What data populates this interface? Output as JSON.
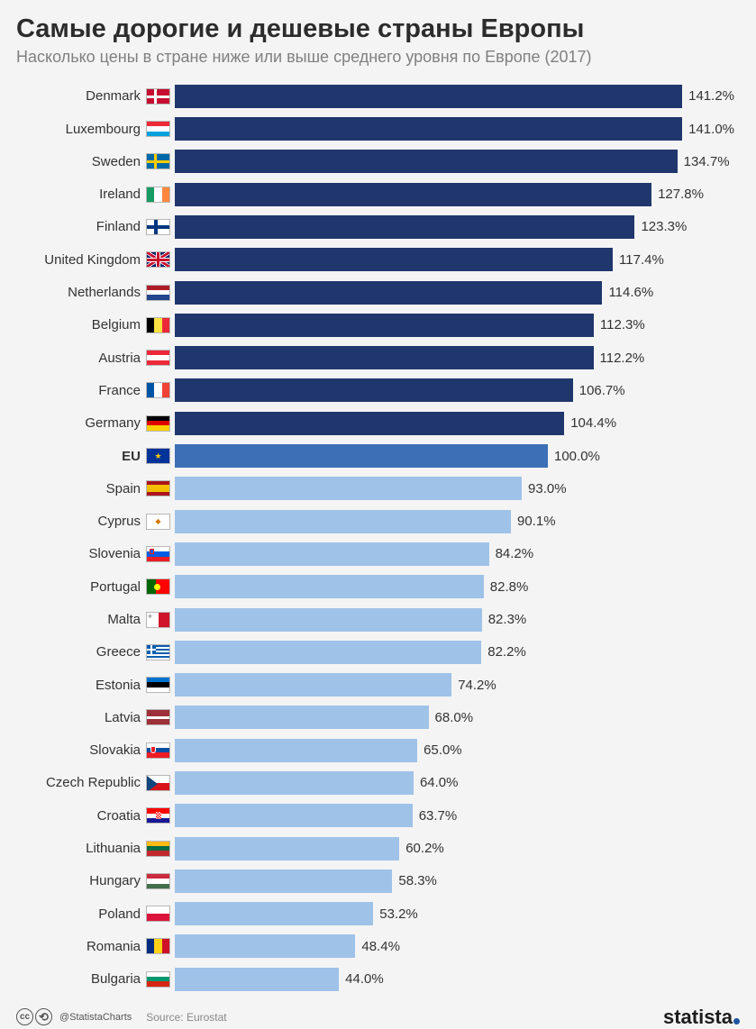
{
  "title": "Самые дорогие и дешевые страны Европы",
  "subtitle": "Насколько цены в стране ниже или выше среднего уровня по Европе (2017)",
  "chart": {
    "type": "bar",
    "max_value": 150,
    "bar_colors": {
      "above": "#20376d",
      "eu": "#3c6fb6",
      "below": "#9fc2e8"
    },
    "label_fontsize": 15,
    "value_fontsize": 15,
    "background_color": "#f4f4f4",
    "rows": [
      {
        "label": "Denmark",
        "value": 141.2,
        "tier": "above",
        "flag": {
          "type": "dan"
        }
      },
      {
        "label": "Luxembourg",
        "value": 141.0,
        "tier": "above",
        "flag": {
          "type": "h3",
          "c": [
            "#ed2939",
            "#fff",
            "#00a1de"
          ]
        }
      },
      {
        "label": "Sweden",
        "value": 134.7,
        "tier": "above",
        "flag": {
          "type": "swe"
        }
      },
      {
        "label": "Ireland",
        "value": 127.8,
        "tier": "above",
        "flag": {
          "type": "v3",
          "c": [
            "#169b62",
            "#fff",
            "#ff883e"
          ]
        }
      },
      {
        "label": "Finland",
        "value": 123.3,
        "tier": "above",
        "flag": {
          "type": "fin"
        }
      },
      {
        "label": "United Kingdom",
        "value": 117.4,
        "tier": "above",
        "flag": {
          "type": "uk"
        }
      },
      {
        "label": "Netherlands",
        "value": 114.6,
        "tier": "above",
        "flag": {
          "type": "h3",
          "c": [
            "#ae1c28",
            "#fff",
            "#21468b"
          ]
        }
      },
      {
        "label": "Belgium",
        "value": 112.3,
        "tier": "above",
        "flag": {
          "type": "v3",
          "c": [
            "#000",
            "#fae042",
            "#ed2939"
          ]
        }
      },
      {
        "label": "Austria",
        "value": 112.2,
        "tier": "above",
        "flag": {
          "type": "h3",
          "c": [
            "#ed2939",
            "#fff",
            "#ed2939"
          ]
        }
      },
      {
        "label": "France",
        "value": 106.7,
        "tier": "above",
        "flag": {
          "type": "v3",
          "c": [
            "#0055a4",
            "#fff",
            "#ef4135"
          ]
        }
      },
      {
        "label": "Germany",
        "value": 104.4,
        "tier": "above",
        "flag": {
          "type": "h3",
          "c": [
            "#000",
            "#dd0000",
            "#ffce00"
          ]
        }
      },
      {
        "label": "EU",
        "value": 100.0,
        "tier": "eu",
        "bold": true,
        "flag": {
          "type": "eu"
        }
      },
      {
        "label": "Spain",
        "value": 93.0,
        "tier": "below",
        "flag": {
          "type": "esp"
        }
      },
      {
        "label": "Cyprus",
        "value": 90.1,
        "tier": "below",
        "flag": {
          "type": "cyp"
        }
      },
      {
        "label": "Slovenia",
        "value": 84.2,
        "tier": "below",
        "flag": {
          "type": "svn"
        }
      },
      {
        "label": "Portugal",
        "value": 82.8,
        "tier": "below",
        "flag": {
          "type": "prt"
        }
      },
      {
        "label": "Malta",
        "value": 82.3,
        "tier": "below",
        "flag": {
          "type": "mlt"
        }
      },
      {
        "label": "Greece",
        "value": 82.2,
        "tier": "below",
        "flag": {
          "type": "grc"
        }
      },
      {
        "label": "Estonia",
        "value": 74.2,
        "tier": "below",
        "flag": {
          "type": "h3",
          "c": [
            "#0072ce",
            "#000",
            "#fff"
          ]
        }
      },
      {
        "label": "Latvia",
        "value": 68.0,
        "tier": "below",
        "flag": {
          "type": "lva"
        }
      },
      {
        "label": "Slovakia",
        "value": 65.0,
        "tier": "below",
        "flag": {
          "type": "svk"
        }
      },
      {
        "label": "Czech Republic",
        "value": 64.0,
        "tier": "below",
        "flag": {
          "type": "cze"
        }
      },
      {
        "label": "Croatia",
        "value": 63.7,
        "tier": "below",
        "flag": {
          "type": "hrv"
        }
      },
      {
        "label": "Lithuania",
        "value": 60.2,
        "tier": "below",
        "flag": {
          "type": "h3",
          "c": [
            "#fdb913",
            "#006a44",
            "#c1272d"
          ]
        }
      },
      {
        "label": "Hungary",
        "value": 58.3,
        "tier": "below",
        "flag": {
          "type": "h3",
          "c": [
            "#cd2a3e",
            "#fff",
            "#436f4d"
          ]
        }
      },
      {
        "label": "Poland",
        "value": 53.2,
        "tier": "below",
        "flag": {
          "type": "h2",
          "c": [
            "#fff",
            "#dc143c"
          ]
        }
      },
      {
        "label": "Romania",
        "value": 48.4,
        "tier": "below",
        "flag": {
          "type": "v3",
          "c": [
            "#002b7f",
            "#fcd116",
            "#ce1126"
          ]
        }
      },
      {
        "label": "Bulgaria",
        "value": 44.0,
        "tier": "below",
        "flag": {
          "type": "h3",
          "c": [
            "#fff",
            "#00966e",
            "#d62612"
          ]
        }
      }
    ]
  },
  "footer": {
    "attribution": "@StatistaCharts",
    "source_prefix": "Source:",
    "source_name": "Eurostat",
    "logo_text": "statista"
  }
}
